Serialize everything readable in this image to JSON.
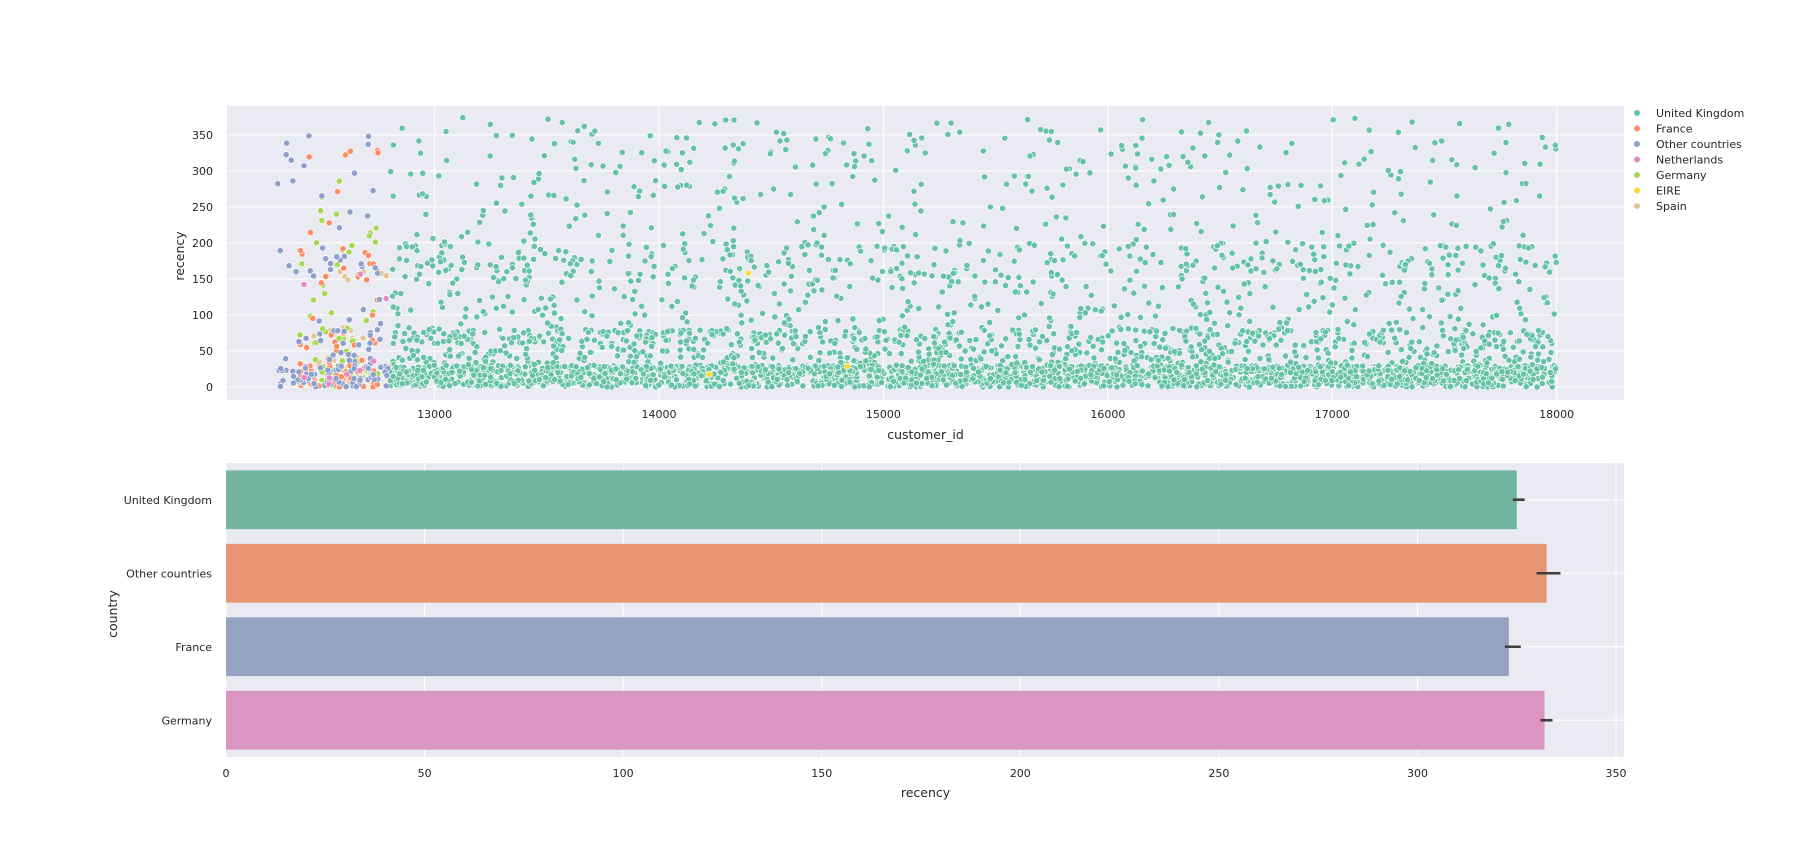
{
  "chart_data": [
    {
      "type": "scatter",
      "title": "",
      "xlabel": "customer_id",
      "ylabel": "recency",
      "xlim": [
        12075,
        18300
      ],
      "ylim": [
        -18,
        390
      ],
      "xticks": [
        13000,
        14000,
        15000,
        16000,
        17000,
        18000
      ],
      "yticks": [
        0,
        50,
        100,
        150,
        200,
        250,
        300,
        350
      ],
      "grid": true,
      "legend_placement": "outside-right",
      "series": [
        {
          "name": "United Kingdom",
          "color": "#66c2a5",
          "approx_count": 3900,
          "x_range": [
            12800,
            18000
          ],
          "y_range": [
            0,
            374
          ]
        },
        {
          "name": "France",
          "color": "#fc8d62",
          "approx_count": 85,
          "x_range": [
            12400,
            12750
          ],
          "y_range": [
            0,
            334
          ]
        },
        {
          "name": "Other countries",
          "color": "#8da0cb",
          "approx_count": 130,
          "x_range": [
            12300,
            12800
          ],
          "y_range": [
            0,
            366
          ]
        },
        {
          "name": "Netherlands",
          "color": "#e78ac3",
          "approx_count": 9,
          "x_range": [
            12350,
            12800
          ],
          "y_range": [
            0,
            186
          ]
        },
        {
          "name": "Germany",
          "color": "#a6d854",
          "approx_count": 95,
          "x_range": [
            12400,
            12750
          ],
          "y_range": [
            0,
            336
          ]
        },
        {
          "name": "EIRE",
          "color": "#ffd92f",
          "approx_count": 3,
          "x_range": [
            14000,
            14900
          ],
          "y_range": [
            0,
            160
          ]
        },
        {
          "name": "Spain",
          "color": "#e5c494",
          "approx_count": 30,
          "x_range": [
            12400,
            12800
          ],
          "y_range": [
            0,
            160
          ]
        }
      ]
    },
    {
      "type": "bar",
      "orientation": "horizontal",
      "title": "",
      "xlabel": "recency",
      "ylabel": "country",
      "xlim": [
        0,
        352
      ],
      "xticks": [
        0,
        50,
        100,
        150,
        200,
        250,
        300,
        350
      ],
      "grid": true,
      "categories": [
        "United Kingdom",
        "Other countries",
        "France",
        "Germany"
      ],
      "values": [
        325,
        332.5,
        323,
        332
      ],
      "error_low": [
        324,
        330,
        322,
        331
      ],
      "error_high": [
        327,
        336,
        326,
        334
      ],
      "colors": [
        "#73b5a1",
        "#e89574",
        "#95a3c2",
        "#da95c1"
      ]
    }
  ]
}
